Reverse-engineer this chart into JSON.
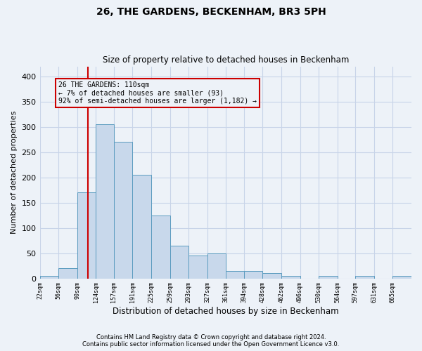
{
  "title": "26, THE GARDENS, BECKENHAM, BR3 5PH",
  "subtitle": "Size of property relative to detached houses in Beckenham",
  "xlabel": "Distribution of detached houses by size in Beckenham",
  "ylabel": "Number of detached properties",
  "footnote1": "Contains HM Land Registry data © Crown copyright and database right 2024.",
  "footnote2": "Contains public sector information licensed under the Open Government Licence v3.0.",
  "annotation_title": "26 THE GARDENS: 110sqm",
  "annotation_line1": "← 7% of detached houses are smaller (93)",
  "annotation_line2": "92% of semi-detached houses are larger (1,182) →",
  "property_size": 110,
  "bar_color": "#c8d8eb",
  "bar_edge_color": "#5a9bbf",
  "vline_color": "#cc0000",
  "annotation_box_color": "#cc0000",
  "grid_color": "#c8d4e8",
  "bg_color": "#edf2f8",
  "bin_edges": [
    22,
    56,
    90,
    124,
    157,
    191,
    225,
    259,
    293,
    327,
    361,
    394,
    428,
    462,
    496,
    530,
    564,
    597,
    631,
    665,
    699
  ],
  "bin_heights": [
    5,
    20,
    170,
    305,
    270,
    205,
    125,
    65,
    45,
    50,
    15,
    15,
    10,
    5,
    0,
    5,
    0,
    5,
    0,
    5
  ],
  "ylim": [
    0,
    420
  ],
  "yticks": [
    0,
    50,
    100,
    150,
    200,
    250,
    300,
    350,
    400
  ]
}
